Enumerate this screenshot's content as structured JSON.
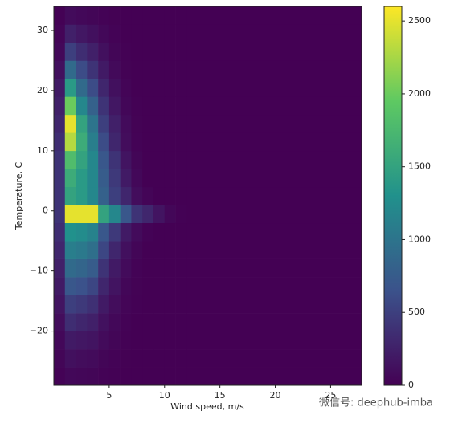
{
  "chart_data": {
    "type": "heatmap",
    "xlabel": "Wind speed, m/s",
    "ylabel": "Temperature, C",
    "xlim": [
      0,
      27.8
    ],
    "ylim": [
      -29,
      34
    ],
    "xticks": [
      5,
      10,
      15,
      20,
      25
    ],
    "yticks": [
      {
        "value": -20,
        "label": "−20"
      },
      {
        "value": -10,
        "label": "−10"
      },
      0,
      10,
      20,
      30
    ],
    "xbins": [
      0,
      1,
      2,
      3,
      4,
      5,
      6,
      7,
      8,
      9,
      10,
      11,
      12,
      27.8
    ],
    "ybins": [
      -29,
      -26,
      -23,
      -20,
      -17,
      -14,
      -11,
      -8,
      -5,
      -2,
      1,
      4,
      7,
      10,
      13,
      16,
      19,
      22,
      25,
      28,
      31,
      34
    ],
    "values": [
      [
        20,
        60,
        50,
        40,
        20,
        10,
        0,
        0,
        0,
        0,
        0,
        0,
        0
      ],
      [
        40,
        120,
        100,
        80,
        40,
        20,
        5,
        0,
        0,
        0,
        0,
        0,
        0
      ],
      [
        60,
        200,
        180,
        150,
        80,
        40,
        10,
        0,
        0,
        0,
        0,
        0,
        0
      ],
      [
        100,
        350,
        300,
        250,
        130,
        60,
        20,
        0,
        0,
        0,
        0,
        0,
        0
      ],
      [
        150,
        500,
        450,
        380,
        200,
        100,
        30,
        10,
        0,
        0,
        0,
        0,
        0
      ],
      [
        200,
        700,
        650,
        550,
        300,
        150,
        50,
        15,
        0,
        0,
        0,
        0,
        0
      ],
      [
        250,
        900,
        850,
        750,
        400,
        200,
        80,
        20,
        0,
        0,
        0,
        0,
        0
      ],
      [
        300,
        1100,
        1050,
        950,
        550,
        300,
        120,
        40,
        0,
        0,
        0,
        0,
        0
      ],
      [
        350,
        1300,
        1250,
        1150,
        700,
        450,
        200,
        80,
        20,
        0,
        0,
        0,
        0
      ],
      [
        400,
        2500,
        2500,
        2500,
        1500,
        1200,
        700,
        400,
        300,
        150,
        50,
        10,
        0
      ],
      [
        400,
        1500,
        1400,
        1200,
        800,
        500,
        300,
        100,
        30,
        0,
        0,
        0,
        0
      ],
      [
        400,
        1600,
        1400,
        1200,
        750,
        450,
        200,
        60,
        0,
        0,
        0,
        0,
        0
      ],
      [
        400,
        1800,
        1500,
        1200,
        700,
        400,
        150,
        40,
        0,
        0,
        0,
        0,
        0
      ],
      [
        350,
        2300,
        1600,
        1100,
        600,
        300,
        100,
        20,
        0,
        0,
        0,
        0,
        0
      ],
      [
        300,
        2500,
        1500,
        1000,
        500,
        250,
        80,
        15,
        0,
        0,
        0,
        0,
        0
      ],
      [
        250,
        2000,
        1200,
        800,
        400,
        180,
        50,
        10,
        0,
        0,
        0,
        0,
        0
      ],
      [
        200,
        1400,
        900,
        600,
        300,
        120,
        30,
        0,
        0,
        0,
        0,
        0,
        0
      ],
      [
        120,
        900,
        600,
        400,
        200,
        70,
        15,
        0,
        0,
        0,
        0,
        0,
        0
      ],
      [
        60,
        500,
        350,
        250,
        120,
        40,
        10,
        0,
        0,
        0,
        0,
        0,
        0
      ],
      [
        30,
        250,
        180,
        120,
        60,
        20,
        0,
        0,
        0,
        0,
        0,
        0,
        0
      ],
      [
        10,
        80,
        60,
        40,
        20,
        5,
        0,
        0,
        0,
        0,
        0,
        0,
        0
      ]
    ],
    "colormap": "viridis",
    "colorbar": {
      "lim": [
        0,
        2600
      ],
      "ticks": [
        0,
        500,
        1000,
        1500,
        2000,
        2500
      ]
    },
    "watermark": "微信号: deephub-imba"
  }
}
